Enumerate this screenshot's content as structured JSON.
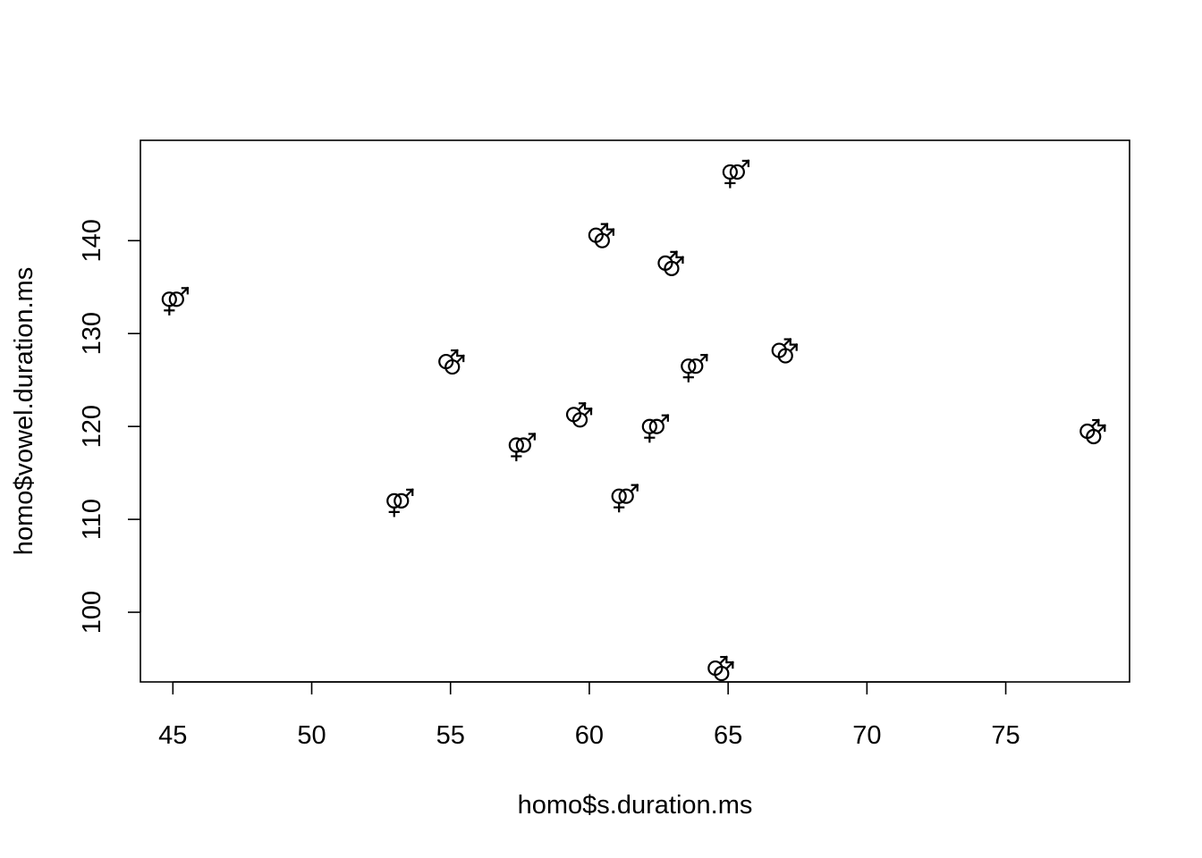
{
  "chart_data": {
    "type": "scatter",
    "title": "",
    "xlabel": "homo$s.duration.ms",
    "ylabel": "homo$vowel.duration.ms",
    "xlim": [
      43.83,
      79.46
    ],
    "ylim": [
      92.5,
      150.8
    ],
    "x_ticks": [
      "45",
      "50",
      "55",
      "60",
      "65",
      "70",
      "75"
    ],
    "y_ticks": [
      "100",
      "110",
      "120",
      "130",
      "140"
    ],
    "grid": false,
    "legend": "none",
    "markers": [
      {
        "symbol": "homo-male",
        "label": "⚣"
      },
      {
        "symbol": "homo-female",
        "label": "⚢"
      }
    ],
    "points": [
      {
        "x": 45.0,
        "y": 133.5,
        "symbol": "homo-female"
      },
      {
        "x": 65.2,
        "y": 147.2,
        "symbol": "homo-female"
      },
      {
        "x": 60.4,
        "y": 140.2,
        "symbol": "homo-male"
      },
      {
        "x": 62.9,
        "y": 137.2,
        "symbol": "homo-male"
      },
      {
        "x": 55.0,
        "y": 126.6,
        "symbol": "homo-male"
      },
      {
        "x": 63.7,
        "y": 126.3,
        "symbol": "homo-female"
      },
      {
        "x": 67.0,
        "y": 127.8,
        "symbol": "homo-male"
      },
      {
        "x": 59.6,
        "y": 120.9,
        "symbol": "homo-male"
      },
      {
        "x": 57.5,
        "y": 117.8,
        "symbol": "homo-female"
      },
      {
        "x": 62.3,
        "y": 119.8,
        "symbol": "homo-female"
      },
      {
        "x": 78.1,
        "y": 119.1,
        "symbol": "homo-male"
      },
      {
        "x": 53.1,
        "y": 111.8,
        "symbol": "homo-female"
      },
      {
        "x": 61.2,
        "y": 112.3,
        "symbol": "homo-female"
      },
      {
        "x": 64.7,
        "y": 93.6,
        "symbol": "homo-male"
      }
    ]
  }
}
